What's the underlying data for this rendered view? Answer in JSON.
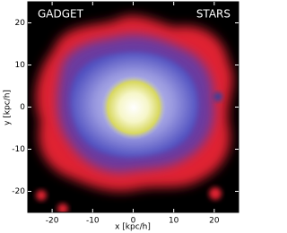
{
  "chart_data": {
    "type": "density",
    "annotations": [
      "GADGET",
      "STARS"
    ],
    "x_label": "x [kpc/h]",
    "y_label": "y [kpc/h]",
    "xlim": [
      -26,
      26
    ],
    "ylim": [
      -25,
      25
    ],
    "xticks": [
      -20,
      -10,
      0,
      10,
      20
    ],
    "yticks": [
      -20,
      -10,
      0,
      10,
      20
    ]
  }
}
